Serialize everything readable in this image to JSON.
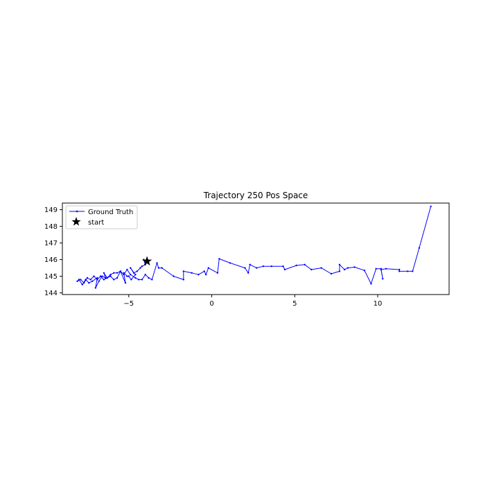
{
  "chart_data": {
    "type": "line",
    "title": "Trajectory 250 Pos Space",
    "xlabel": "",
    "ylabel": "",
    "xlim": [
      -9.0,
      14.3
    ],
    "ylim": [
      143.9,
      149.4
    ],
    "x_ticks": [
      -5,
      0,
      5,
      10
    ],
    "x_tick_labels": [
      "−5",
      "0",
      "5",
      "10"
    ],
    "y_ticks": [
      144,
      145,
      146,
      147,
      148,
      149
    ],
    "y_tick_labels": [
      "144",
      "145",
      "146",
      "147",
      "148",
      "149"
    ],
    "grid": false,
    "legend_position": "upper-left",
    "series": [
      {
        "name": "Ground Truth",
        "color": "#0000ff",
        "marker": "dot",
        "x": [
          -3.9,
          -4.1,
          -4.0,
          -4.2,
          -4.3,
          -4.5,
          -4.7,
          -4.9,
          -4.6,
          -4.85,
          -5.0,
          -5.1,
          -5.3,
          -5.2,
          -5.5,
          -5.7,
          -5.9,
          -6.1,
          -6.3,
          -6.5,
          -6.4,
          -6.6,
          -6.8,
          -7.0,
          -6.9,
          -7.2,
          -7.4,
          -7.6,
          -7.8,
          -8.0,
          -8.1,
          -7.9,
          -7.7,
          -7.5,
          -7.3,
          -7.1,
          -6.9,
          -6.7,
          -6.5,
          -6.3,
          -6.1,
          -5.9,
          -5.7,
          -5.5,
          -5.3,
          -5.1,
          -4.9,
          -4.6,
          -4.4,
          -4.2,
          -4.0,
          -3.8,
          -3.6,
          -3.3,
          -3.2,
          -3.0,
          -2.3,
          -1.7,
          -1.7,
          -1.2,
          -0.8,
          -0.45,
          -0.35,
          -0.2,
          0.35,
          0.45,
          1.1,
          2.0,
          2.2,
          2.3,
          2.7,
          3.1,
          3.6,
          4.3,
          4.4,
          5.1,
          5.6,
          6.0,
          6.6,
          7.2,
          7.7,
          7.7,
          8.0,
          8.2,
          8.6,
          9.2,
          9.6,
          9.9,
          10.2,
          10.3,
          10.2,
          10.5,
          11.3,
          11.3,
          11.8,
          12.1,
          12.5,
          13.2
        ],
        "y": [
          145.9,
          146.0,
          145.7,
          145.6,
          145.5,
          145.3,
          145.2,
          145.5,
          145.1,
          144.8,
          145.0,
          145.0,
          145.2,
          144.6,
          145.3,
          144.9,
          144.8,
          145.0,
          144.9,
          145.2,
          144.9,
          145.0,
          144.7,
          144.3,
          144.9,
          144.7,
          144.6,
          144.8,
          144.5,
          144.8,
          144.7,
          144.8,
          144.6,
          144.9,
          144.8,
          145.0,
          144.8,
          145.0,
          144.8,
          144.9,
          145.1,
          145.2,
          145.2,
          145.3,
          145.1,
          145.4,
          145.1,
          144.9,
          144.8,
          144.8,
          145.1,
          144.9,
          144.8,
          145.8,
          145.5,
          145.5,
          145.0,
          144.8,
          145.3,
          145.2,
          145.1,
          145.3,
          145.1,
          145.5,
          145.2,
          146.05,
          145.8,
          145.5,
          145.2,
          145.7,
          145.5,
          145.6,
          145.6,
          145.6,
          145.4,
          145.65,
          145.7,
          145.4,
          145.5,
          145.15,
          145.3,
          145.7,
          145.4,
          145.5,
          145.55,
          145.35,
          144.55,
          145.45,
          145.45,
          144.85,
          145.4,
          145.45,
          145.4,
          145.3,
          145.3,
          145.3,
          146.7,
          149.2
        ]
      },
      {
        "name": "start",
        "color": "#000000",
        "marker": "star",
        "x": [
          -3.9
        ],
        "y": [
          145.9
        ]
      }
    ]
  }
}
